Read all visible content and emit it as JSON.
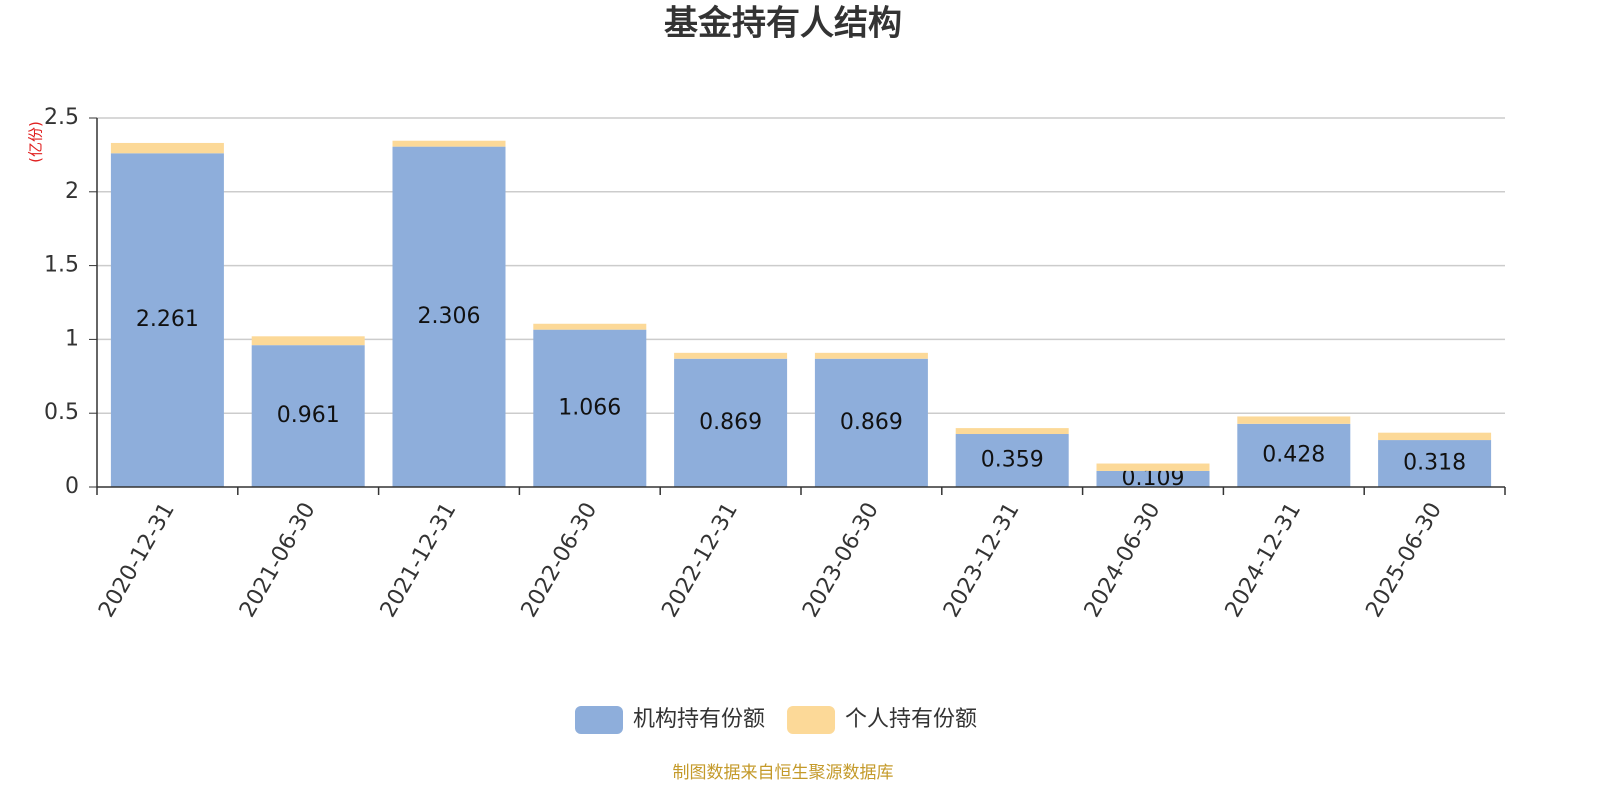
{
  "chart_data": {
    "type": "stacked_bar",
    "title": "基金持有人结构",
    "y_unit": "(亿份)",
    "source": "制图数据来自恒生聚源数据库",
    "categories": [
      "2020-12-31",
      "2021-06-30",
      "2021-12-31",
      "2022-06-30",
      "2022-12-31",
      "2023-06-30",
      "2023-12-31",
      "2024-06-30",
      "2024-12-31",
      "2025-06-30"
    ],
    "series": [
      {
        "name": "机构持有份额",
        "color": "#8eaedb",
        "values": [
          2.261,
          0.961,
          2.306,
          1.066,
          0.869,
          0.869,
          0.359,
          0.109,
          0.428,
          0.318
        ]
      },
      {
        "name": "个人持有份额",
        "color": "#fcd998",
        "values": [
          0.07,
          0.06,
          0.04,
          0.04,
          0.04,
          0.04,
          0.04,
          0.05,
          0.05,
          0.05
        ]
      }
    ],
    "ylim": [
      0,
      2.5
    ],
    "yticks": [
      0,
      0.5,
      1,
      1.5,
      2,
      2.5
    ],
    "grid": true
  }
}
